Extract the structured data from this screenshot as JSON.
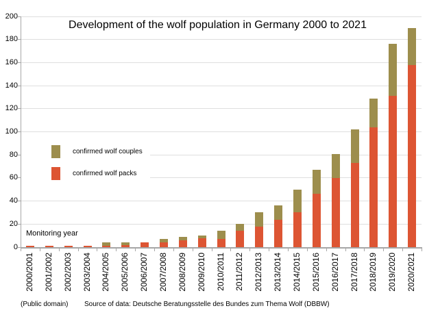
{
  "title": "Development of the wolf population in Germany 2000 to 2021",
  "legend": {
    "couples_label": "confirmed wolf couples",
    "packs_label": "confirmed wolf packs"
  },
  "xlabel": "Monitoring year",
  "footer": {
    "license": "(Public domain)",
    "source": "Source of data: Deutsche Beratungsstelle des Bundes zum Thema Wolf (DBBW)"
  },
  "colors": {
    "packs": "#dd5533",
    "couples": "#9d8e4d",
    "gridline": "#dedede",
    "axis": "#a6a6a6"
  },
  "chart_data": {
    "type": "bar",
    "stacked": true,
    "title": "Development of the wolf population in Germany 2000 to 2021",
    "xlabel": "Monitoring year",
    "ylabel": "",
    "ylim": [
      0,
      200
    ],
    "ytick_step": 20,
    "grid": true,
    "legend_position": "upper-left-inside",
    "categories": [
      "2000/2001",
      "2001/2002",
      "2002/2003",
      "2003/2004",
      "2004/2005",
      "2005/2006",
      "2006/2007",
      "2007/2008",
      "2008/2009",
      "2009/2010",
      "2010/2011",
      "2011/2012",
      "2012/2013",
      "2013/2014",
      "2014/2015",
      "2015/2016",
      "2016/2017",
      "2017/2018",
      "2018/2019",
      "2019/2020",
      "2020/2021"
    ],
    "series": [
      {
        "name": "confirmed wolf packs",
        "color": "#dd5533",
        "values": [
          1,
          1,
          1,
          1,
          1,
          2,
          4,
          4,
          6,
          8,
          7,
          14,
          18,
          24,
          30,
          46,
          60,
          73,
          104,
          131,
          158
        ]
      },
      {
        "name": "confirmed wolf couples",
        "color": "#9d8e4d",
        "values": [
          0,
          0,
          0,
          0,
          3,
          2,
          0,
          3,
          3,
          2,
          7,
          6,
          12,
          12,
          20,
          21,
          21,
          29,
          25,
          45,
          32
        ]
      }
    ]
  }
}
